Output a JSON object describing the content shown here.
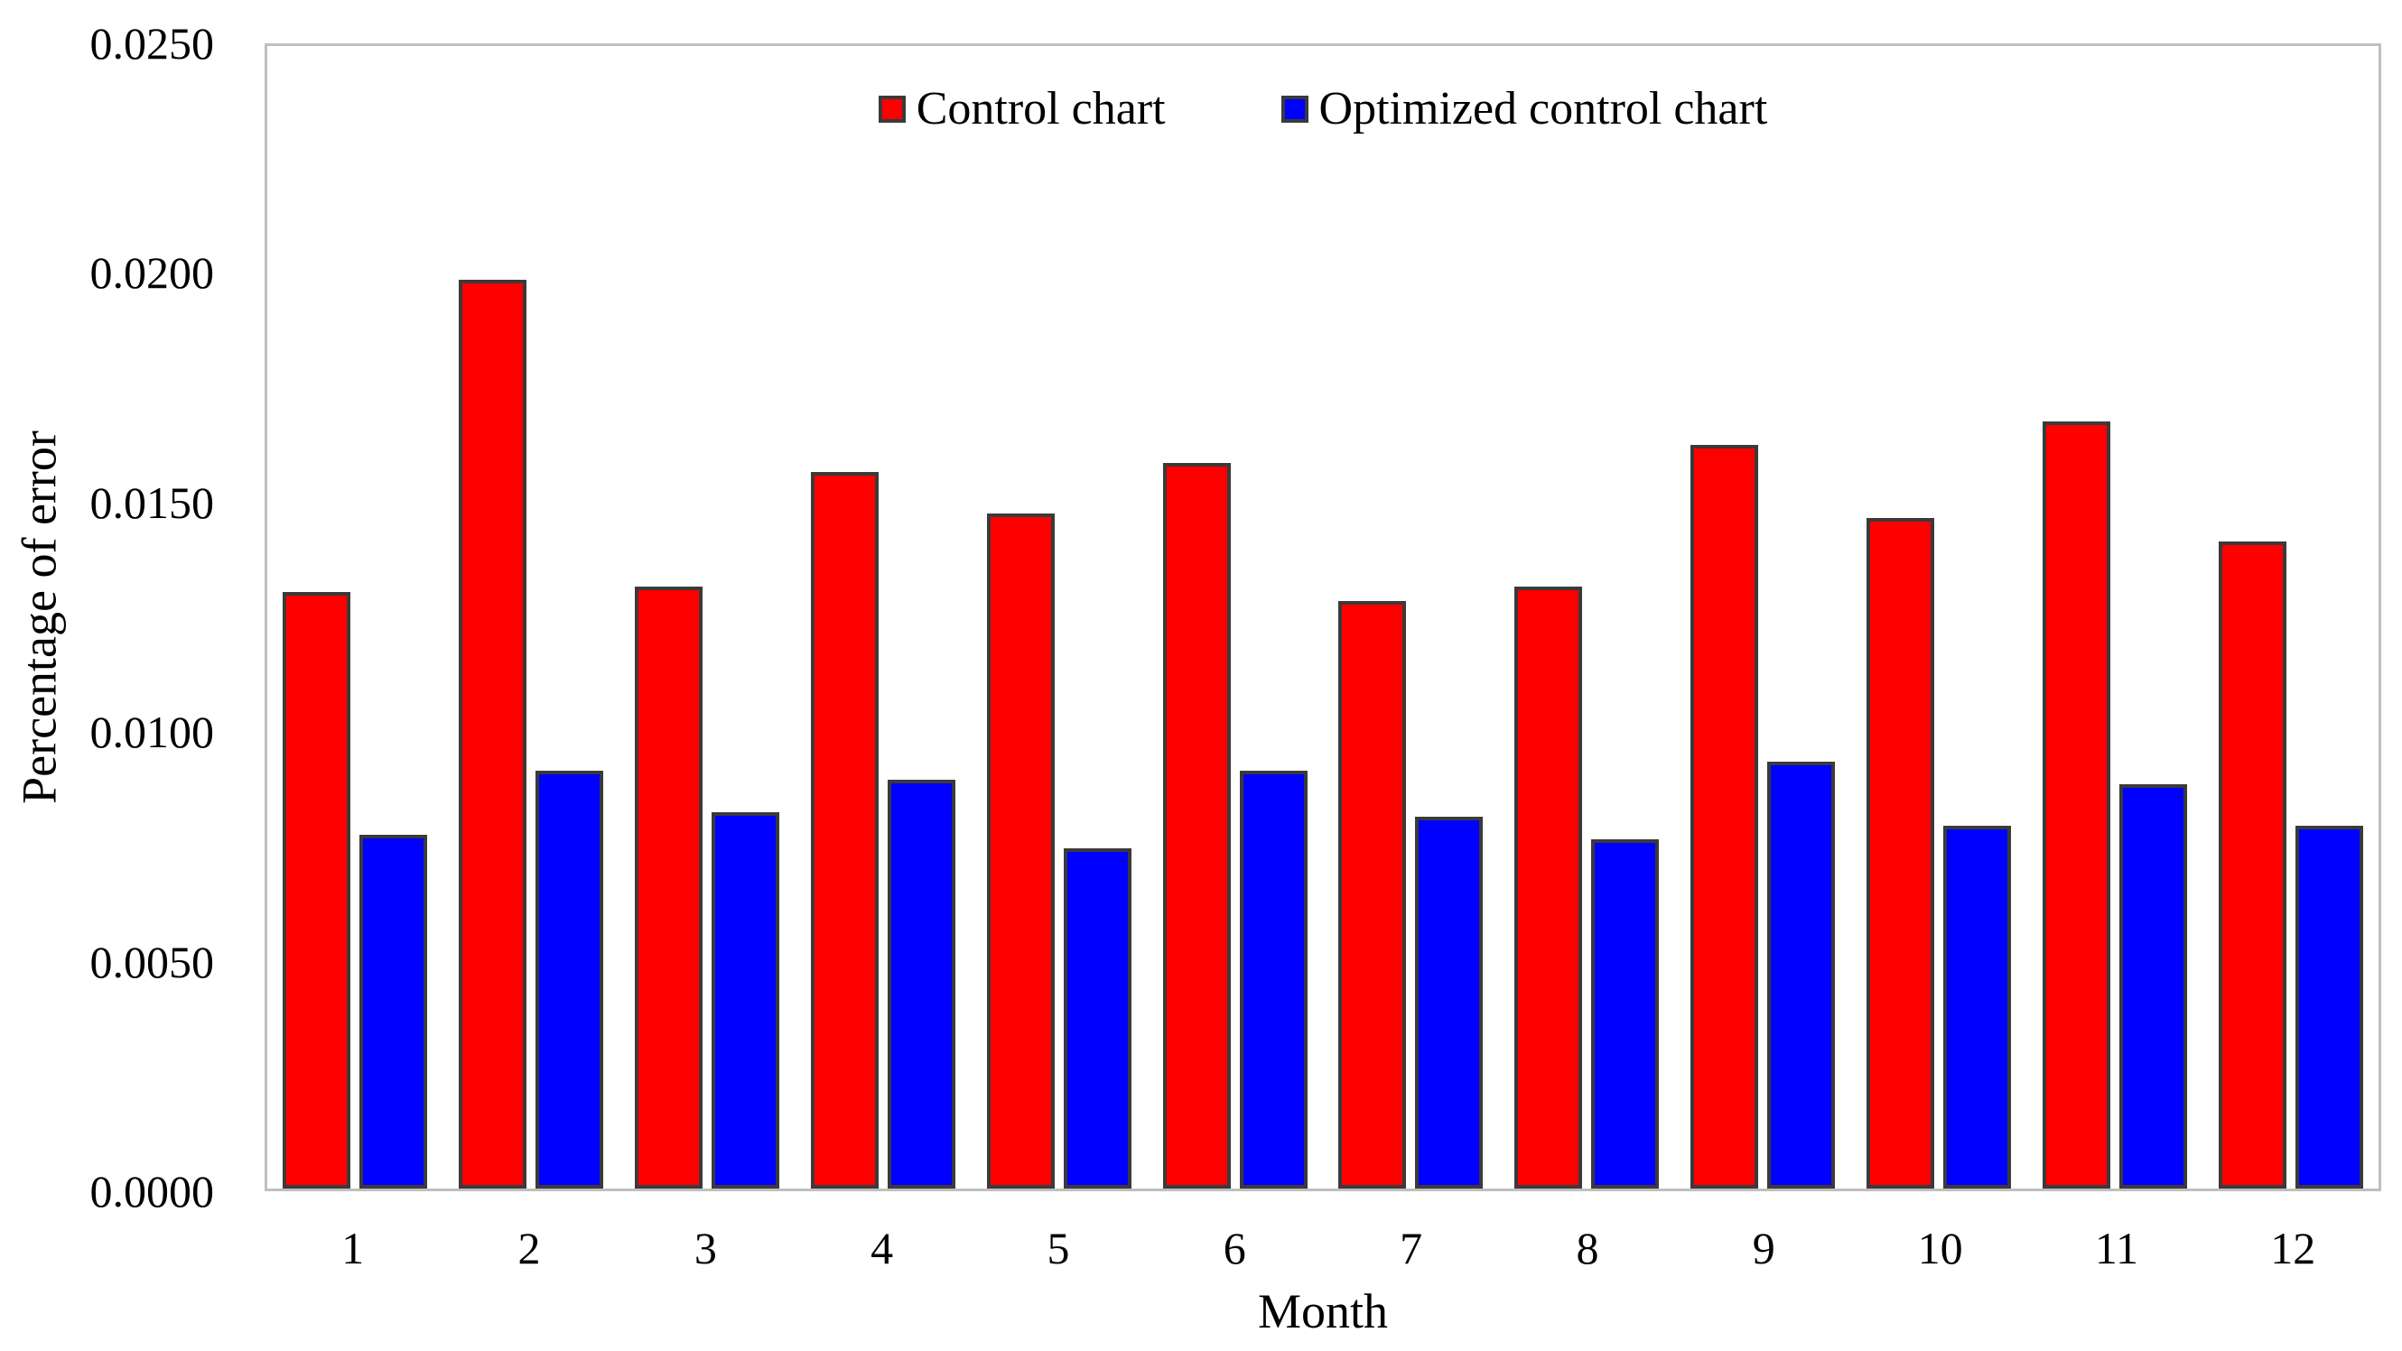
{
  "chart_data": {
    "type": "bar",
    "title": "",
    "xlabel": "Month",
    "ylabel": "Percentage of error",
    "categories": [
      "1",
      "2",
      "3",
      "4",
      "5",
      "6",
      "7",
      "8",
      "9",
      "10",
      "11",
      "12"
    ],
    "series": [
      {
        "name": "Control chart",
        "color": "#ff0000",
        "values": [
          0.013,
          0.0198,
          0.0131,
          0.0156,
          0.0147,
          0.0158,
          0.0128,
          0.0131,
          0.0162,
          0.0146,
          0.0167,
          0.0141
        ]
      },
      {
        "name": "Optimized control chart",
        "color": "#0000ff",
        "values": [
          0.0077,
          0.0091,
          0.0082,
          0.0089,
          0.0074,
          0.0091,
          0.0081,
          0.0076,
          0.0093,
          0.0079,
          0.0088,
          0.0079
        ]
      }
    ],
    "ylim": [
      0.0,
      0.025
    ],
    "ytick_labels": [
      "0.0000",
      "0.0050",
      "0.0100",
      "0.0150",
      "0.0200",
      "0.0250"
    ],
    "grid": "off",
    "legend_position": "top-center",
    "bar_border_color": "#3a3a3a",
    "axis_box_color": "#bfbfbf"
  }
}
